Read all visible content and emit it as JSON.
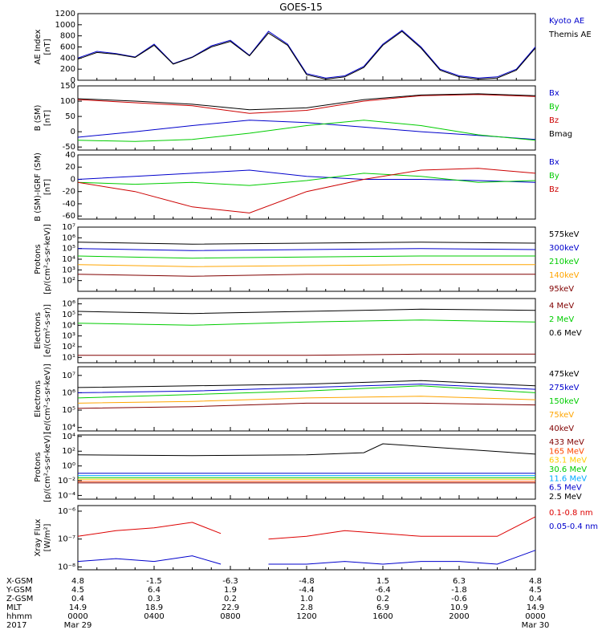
{
  "title": "GOES-15",
  "chart_data": [
    {
      "type": "line",
      "panel": "ae",
      "ylabel": [
        "AE Index",
        "[nT]"
      ],
      "ylim": [
        0,
        1200
      ],
      "scale": "linear",
      "yticks": [
        0,
        200,
        400,
        600,
        800,
        1000,
        1200
      ],
      "yticklabels": [
        "0",
        "200",
        "400",
        "600",
        "800",
        "1000",
        "1200"
      ],
      "legend": [
        "Kyoto AE",
        "Themis AE"
      ],
      "series": [
        {
          "name": "Kyoto AE",
          "color": "#0000cc",
          "x": [
            0,
            1,
            2,
            3,
            4,
            5,
            6,
            7,
            8,
            9,
            10,
            11,
            12,
            13,
            14,
            15,
            16,
            17,
            18,
            19,
            20,
            21,
            22,
            23,
            24
          ],
          "y": [
            400,
            520,
            480,
            420,
            650,
            300,
            420,
            620,
            720,
            450,
            880,
            650,
            120,
            40,
            80,
            250,
            650,
            900,
            600,
            200,
            80,
            40,
            60,
            200,
            600
          ]
        },
        {
          "name": "Themis AE",
          "color": "#000000",
          "x": [
            0,
            1,
            2,
            3,
            4,
            5,
            6,
            7,
            8,
            9,
            10,
            11,
            12,
            13,
            14,
            15,
            16,
            17,
            18,
            19,
            20,
            21,
            22,
            23,
            24
          ],
          "y": [
            380,
            500,
            470,
            410,
            630,
            290,
            410,
            600,
            700,
            440,
            850,
            630,
            100,
            20,
            60,
            230,
            630,
            880,
            580,
            180,
            60,
            20,
            40,
            180,
            580
          ]
        }
      ]
    },
    {
      "type": "line",
      "panel": "bsm",
      "ylabel": [
        "B (SM)",
        "[nT]"
      ],
      "ylim": [
        -60,
        150
      ],
      "scale": "linear",
      "yticks": [
        -50,
        0,
        50,
        100,
        150
      ],
      "yticklabels": [
        "-50",
        "0",
        "50",
        "100",
        "150"
      ],
      "legend": [
        "Bx",
        "By",
        "Bz",
        "Bmag"
      ],
      "series": [
        {
          "name": "Bx",
          "color": "#0000cc",
          "x": [
            0,
            3,
            6,
            9,
            12,
            15,
            18,
            21,
            24
          ],
          "y": [
            -18,
            0,
            20,
            38,
            30,
            15,
            0,
            -12,
            -25
          ]
        },
        {
          "name": "By",
          "color": "#00cc00",
          "x": [
            0,
            3,
            6,
            9,
            12,
            15,
            18,
            21,
            24
          ],
          "y": [
            -28,
            -32,
            -25,
            -5,
            20,
            38,
            20,
            -10,
            -28
          ]
        },
        {
          "name": "Bz",
          "color": "#cc0000",
          "x": [
            0,
            3,
            6,
            9,
            12,
            15,
            18,
            21,
            24
          ],
          "y": [
            105,
            95,
            85,
            60,
            70,
            100,
            118,
            122,
            115
          ]
        },
        {
          "name": "Bmag",
          "color": "#000000",
          "x": [
            0,
            3,
            6,
            9,
            12,
            15,
            18,
            21,
            24
          ],
          "y": [
            108,
            100,
            90,
            72,
            78,
            105,
            120,
            124,
            118
          ]
        }
      ]
    },
    {
      "type": "line",
      "panel": "bigrf",
      "ylabel": [
        "B (SM)-IGRF (SM)",
        "[nT]"
      ],
      "ylim": [
        -65,
        40
      ],
      "scale": "linear",
      "yticks": [
        -60,
        -40,
        -20,
        0,
        20,
        40
      ],
      "yticklabels": [
        "-60",
        "-40",
        "-20",
        "0",
        "20",
        "40"
      ],
      "legend": [
        "Bx",
        "By",
        "Bz"
      ],
      "series": [
        {
          "name": "Bx",
          "color": "#0000cc",
          "x": [
            0,
            3,
            6,
            9,
            12,
            15,
            18,
            21,
            24
          ],
          "y": [
            0,
            5,
            10,
            15,
            5,
            0,
            0,
            -2,
            -5
          ]
        },
        {
          "name": "By",
          "color": "#00cc00",
          "x": [
            0,
            3,
            6,
            9,
            12,
            15,
            18,
            21,
            24
          ],
          "y": [
            -5,
            -8,
            -5,
            -10,
            -2,
            10,
            5,
            -5,
            -2
          ]
        },
        {
          "name": "Bz",
          "color": "#cc0000",
          "x": [
            0,
            3,
            6,
            9,
            12,
            15,
            18,
            21,
            24
          ],
          "y": [
            -5,
            -20,
            -45,
            -55,
            -20,
            0,
            15,
            18,
            10
          ]
        }
      ]
    },
    {
      "type": "line",
      "panel": "protons_low",
      "ylabel": [
        "Protons",
        "[p/(cm²-s-sr-keV)]"
      ],
      "ylim": [
        1,
        7
      ],
      "scale": "log",
      "yticks": [
        2,
        3,
        4,
        5,
        6,
        7
      ],
      "yticklabels": [
        "10²",
        "10³",
        "10⁴",
        "10⁵",
        "10⁶",
        "10⁷"
      ],
      "legend": [
        "575keV",
        "300keV",
        "210keV",
        "140keV",
        "95keV"
      ],
      "series": [
        {
          "name": "95keV",
          "color": "#800000",
          "x": [
            0,
            6,
            12,
            18,
            24
          ],
          "y": [
            2.6,
            2.4,
            2.6,
            2.6,
            2.6
          ]
        },
        {
          "name": "140keV",
          "color": "#ffa500",
          "x": [
            0,
            6,
            12,
            18,
            24
          ],
          "y": [
            3.5,
            3.3,
            3.4,
            3.5,
            3.5
          ]
        },
        {
          "name": "210keV",
          "color": "#00cc00",
          "x": [
            0,
            6,
            12,
            18,
            24
          ],
          "y": [
            4.3,
            4.1,
            4.2,
            4.3,
            4.3
          ]
        },
        {
          "name": "300keV",
          "color": "#0000cc",
          "x": [
            0,
            6,
            12,
            18,
            24
          ],
          "y": [
            5.0,
            4.8,
            4.9,
            5.0,
            4.9
          ]
        },
        {
          "name": "575keV",
          "color": "#000000",
          "x": [
            0,
            6,
            12,
            18,
            24
          ],
          "y": [
            5.6,
            5.4,
            5.5,
            5.6,
            5.5
          ]
        }
      ]
    },
    {
      "type": "line",
      "panel": "electrons_mev",
      "ylabel": [
        "Electrons",
        "[e/(cm²-s-sr)]"
      ],
      "ylim": [
        0.5,
        6.5
      ],
      "scale": "log",
      "yticks": [
        1,
        2,
        3,
        4,
        5,
        6
      ],
      "yticklabels": [
        "10¹",
        "10²",
        "10³",
        "10⁴",
        "10⁵",
        "10⁶"
      ],
      "legend": [
        "4 MeV",
        "2 MeV",
        "0.6 MeV"
      ],
      "series": [
        {
          "name": "4 MeV",
          "color": "#800000",
          "x": [
            0,
            6,
            12,
            18,
            24
          ],
          "y": [
            1.2,
            1.2,
            1.2,
            1.3,
            1.3
          ]
        },
        {
          "name": "2 MeV",
          "color": "#00cc00",
          "x": [
            0,
            6,
            12,
            18,
            24
          ],
          "y": [
            4.2,
            4.0,
            4.3,
            4.5,
            4.3
          ]
        },
        {
          "name": "0.6 MeV",
          "color": "#000000",
          "x": [
            0,
            6,
            12,
            18,
            24
          ],
          "y": [
            5.3,
            5.1,
            5.3,
            5.5,
            5.4
          ]
        }
      ]
    },
    {
      "type": "line",
      "panel": "electrons_kev",
      "ylabel": [
        "Electrons",
        "[e/(cm²-s-sr-keV)]"
      ],
      "ylim": [
        3.8,
        7.5
      ],
      "scale": "log",
      "yticks": [
        4,
        5,
        6,
        7
      ],
      "yticklabels": [
        "10⁴",
        "10⁵",
        "10⁶",
        "10⁷"
      ],
      "legend": [
        "475keV",
        "275keV",
        "150keV",
        "75keV",
        "40keV"
      ],
      "series": [
        {
          "name": "40keV",
          "color": "#800000",
          "x": [
            0,
            6,
            12,
            18,
            24
          ],
          "y": [
            5.1,
            5.2,
            5.4,
            5.4,
            5.3
          ]
        },
        {
          "name": "75keV",
          "color": "#ffa500",
          "x": [
            0,
            6,
            12,
            18,
            24
          ],
          "y": [
            5.4,
            5.5,
            5.7,
            5.8,
            5.6
          ]
        },
        {
          "name": "150keV",
          "color": "#00cc00",
          "x": [
            0,
            6,
            12,
            18,
            24
          ],
          "y": [
            5.7,
            5.9,
            6.1,
            6.4,
            6.0
          ]
        },
        {
          "name": "275keV",
          "color": "#0000cc",
          "x": [
            0,
            6,
            12,
            18,
            24
          ],
          "y": [
            6.0,
            6.1,
            6.3,
            6.5,
            6.2
          ]
        },
        {
          "name": "475keV",
          "color": "#000000",
          "x": [
            0,
            6,
            12,
            18,
            24
          ],
          "y": [
            6.3,
            6.4,
            6.5,
            6.7,
            6.4
          ]
        }
      ]
    },
    {
      "type": "line",
      "panel": "protons_mev",
      "ylabel": [
        "Protons",
        "[p/(cm²-s-sr-keV)]"
      ],
      "ylim": [
        -4.5,
        4.2
      ],
      "scale": "log",
      "yticks": [
        -4,
        -2,
        0,
        2,
        4
      ],
      "yticklabels": [
        "10⁻⁴",
        "10⁻²",
        "10⁰",
        "10²",
        "10⁴"
      ],
      "legend": [
        "433 MeV",
        "165 MeV",
        "63.1 MeV",
        "30.6 MeV",
        "11.6 MeV",
        "6.5 MeV",
        "2.5 MeV"
      ],
      "series": [
        {
          "name": "433 MeV",
          "color": "#800000",
          "x": [
            0,
            24
          ],
          "y": [
            -2.3,
            -2.3
          ]
        },
        {
          "name": "165 MeV",
          "color": "#ff4500",
          "x": [
            0,
            24
          ],
          "y": [
            -2.1,
            -2.1
          ]
        },
        {
          "name": "63.1 MeV",
          "color": "#ffcc00",
          "x": [
            0,
            24
          ],
          "y": [
            -1.8,
            -1.8
          ]
        },
        {
          "name": "30.6 MeV",
          "color": "#00cc00",
          "x": [
            0,
            24
          ],
          "y": [
            -1.6,
            -1.6
          ]
        },
        {
          "name": "11.6 MeV",
          "color": "#00aaff",
          "x": [
            0,
            24
          ],
          "y": [
            -1.3,
            -1.3
          ]
        },
        {
          "name": "6.5 MeV",
          "color": "#0000cc",
          "x": [
            0,
            24
          ],
          "y": [
            -1.0,
            -1.0
          ]
        },
        {
          "name": "2.5 MeV",
          "color": "#000000",
          "x": [
            0,
            6,
            12,
            15,
            16,
            24
          ],
          "y": [
            1.5,
            1.4,
            1.5,
            1.8,
            3.0,
            1.6
          ]
        }
      ]
    },
    {
      "type": "line",
      "panel": "xray",
      "ylabel": [
        "Xray Flux",
        "[W/m²]"
      ],
      "ylim": [
        -8.1,
        -5.8
      ],
      "scale": "log",
      "yticks": [
        -8,
        -7,
        -6
      ],
      "yticklabels": [
        "10⁻⁸",
        "10⁻⁷",
        "10⁻⁶"
      ],
      "legend": [
        "0.1-0.8 nm",
        "0.05-0.4 nm"
      ],
      "series": [
        {
          "name": "0.1-0.8 nm",
          "color": "#dd0000",
          "x": [
            0,
            2,
            4,
            6,
            7.5,
            8.5,
            10,
            12,
            14,
            16,
            18,
            20,
            22,
            24
          ],
          "y": [
            -6.9,
            -6.7,
            -6.6,
            -6.4,
            -6.8,
            null,
            -7.0,
            -6.9,
            -6.7,
            -6.8,
            -6.9,
            -6.9,
            -6.9,
            -6.2
          ]
        },
        {
          "name": "0.05-0.4 nm",
          "color": "#0000cc",
          "x": [
            0,
            2,
            4,
            6,
            7.5,
            8.5,
            10,
            12,
            14,
            16,
            18,
            20,
            22,
            24
          ],
          "y": [
            -7.8,
            -7.7,
            -7.8,
            -7.6,
            -7.9,
            null,
            -7.9,
            -7.9,
            -7.8,
            -7.9,
            -7.8,
            -7.8,
            -7.9,
            -7.4
          ]
        }
      ]
    }
  ],
  "footer": {
    "rows": [
      {
        "label": "X-GSM",
        "vals": [
          "4.8",
          "-1.5",
          "-6.3",
          "-4.8",
          "1.5",
          "6.3",
          "4.8"
        ]
      },
      {
        "label": "Y-GSM",
        "vals": [
          "4.5",
          "6.4",
          "1.9",
          "-4.4",
          "-6.4",
          "-1.8",
          "4.5"
        ]
      },
      {
        "label": "Z-GSM",
        "vals": [
          "0.4",
          "0.3",
          "0.2",
          "1.0",
          "0.2",
          "-0.6",
          "0.4"
        ]
      },
      {
        "label": "MLT",
        "vals": [
          "14.9",
          "18.9",
          "22.9",
          "2.8",
          "6.9",
          "10.9",
          "14.9"
        ]
      },
      {
        "label": "hhmm",
        "vals": [
          "0000",
          "0400",
          "0800",
          "1200",
          "1600",
          "2000",
          "0000"
        ]
      },
      {
        "label": "2017",
        "vals": [
          "Mar 29",
          "",
          "",
          "",
          "",
          "",
          "Mar 30"
        ]
      }
    ]
  }
}
